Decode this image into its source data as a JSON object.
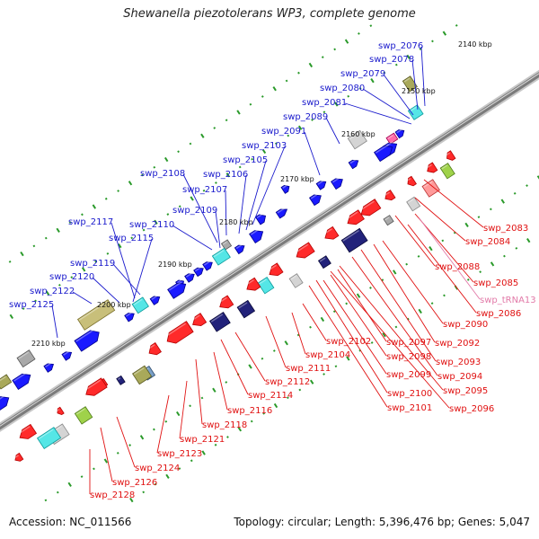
{
  "title": "Shewanella piezotolerans WP3, complete genome",
  "footer": {
    "accession": "Accession: NC_011566",
    "summary": "Topology: circular; Length: 5,396,476 bp; Genes: 5,047"
  },
  "colors": {
    "plus_label": "#1a1acc",
    "minus_label": "#e01010",
    "trna_label": "#e27aa8",
    "backbone": "#8a8a8a"
  },
  "ruler_labels": [
    "2140 kbp",
    "2150 kbp",
    "2160 kbp",
    "2170 kbp",
    "2180 kbp",
    "2190 kbp",
    "2200 kbp",
    "2210 kbp"
  ],
  "plus_genes": [
    "swp_2076",
    "swp_2078",
    "swp_2079",
    "swp_2080",
    "swp_2081",
    "swp_2089",
    "swp_2091",
    "swp_2103",
    "swp_2105",
    "swp_2106",
    "swp_2107",
    "swp_2108",
    "swp_2109",
    "swp_2110",
    "swp_2115",
    "swp_2117",
    "swp_2119",
    "swp_2120",
    "swp_2122",
    "swp_2125"
  ],
  "minus_genes": [
    "swp_2083",
    "swp_2084",
    "swp_2088",
    "swp_2085",
    "swp_tRNA13",
    "swp_2086",
    "swp_2090",
    "swp_2092",
    "swp_2093",
    "swp_2094",
    "swp_2095",
    "swp_2096",
    "swp_2097",
    "swp_2098",
    "swp_2099",
    "swp_2100",
    "swp_2101",
    "swp_2102",
    "swp_2104",
    "swp_2111",
    "swp_2112",
    "swp_2114",
    "swp_2116",
    "swp_2118",
    "swp_2121",
    "swp_2123",
    "swp_2124",
    "swp_2126",
    "swp_2128"
  ]
}
